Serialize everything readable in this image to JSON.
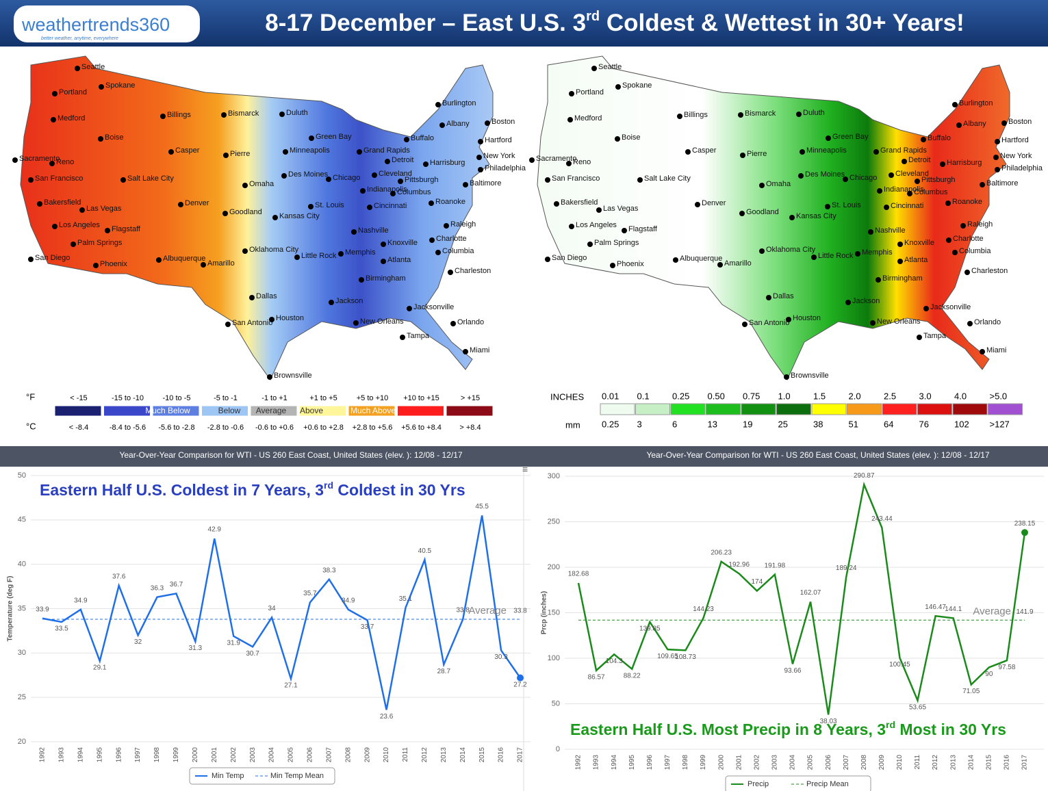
{
  "header": {
    "logo": "weathertrends360",
    "tagline": "better weather, anytime, everywhere",
    "title_parts": [
      "8-17 December – East U.S. 3",
      "rd",
      " Coldest & Wettest in 30+ Years!"
    ]
  },
  "cities": [
    "Seattle",
    "Spokane",
    "Portland",
    "Medford",
    "Boise",
    "Billings",
    "Casper",
    "Bismarck",
    "Duluth",
    "Minneapolis",
    "Pierre",
    "Green Bay",
    "Grand Rapids",
    "Detroit",
    "Burlington",
    "Albany",
    "Boston",
    "Hartford",
    "Buffalo",
    "New York",
    "Philadelphia",
    "Harrisburg",
    "Baltimore",
    "Pittsburgh",
    "Cleveland",
    "Chicago",
    "Des Moines",
    "Omaha",
    "Salt Lake City",
    "Reno",
    "Sacramento",
    "San Francisco",
    "Bakersfield",
    "Las Vegas",
    "Denver",
    "Goodland",
    "Kansas City",
    "St. Louis",
    "Indianapolis",
    "Columbus",
    "Cincinnati",
    "Roanoke",
    "Raleigh",
    "Charlotte",
    "Nashville",
    "Knoxville",
    "Los Angeles",
    "Palm Springs",
    "Flagstaff",
    "San Diego",
    "Phoenix",
    "Albuquerque",
    "Amarillo",
    "Oklahoma City",
    "Little Rock",
    "Memphis",
    "Atlanta",
    "Columbia",
    "Charleston",
    "Birmingham",
    "Dallas",
    "Jackson",
    "Jacksonville",
    "San Antonio",
    "Houston",
    "New Orleans",
    "Orlando",
    "Tampa",
    "Miami",
    "Brownsville"
  ],
  "temperature_map": {
    "legend": {
      "unit_f": "°F",
      "unit_c": "°C",
      "f_ranges": [
        "< -15",
        "-15 to -10",
        "-10 to -5",
        "-5 to -1",
        "-1 to +1",
        "+1 to +5",
        "+5 to +10",
        "+10 to +15",
        "> +15"
      ],
      "c_ranges": [
        "< -8.4",
        "-8.4 to -5.6",
        "-5.6 to -2.8",
        "-2.8 to -0.6",
        "-0.6 to +0.6",
        "+0.6 to +2.8",
        "+2.8 to +5.6",
        "+5.6 to +8.4",
        "> +8.4"
      ],
      "colors": [
        "#1b2070",
        "#3b47c9",
        "#5d7fe2",
        "#9ec6f5",
        "#b4b4b4",
        "#fff59b",
        "#f4a020",
        "#ff1c1c",
        "#8c0b16"
      ],
      "classes": [
        "Much Below",
        "Below",
        "Average",
        "Above",
        "Much Above"
      ]
    }
  },
  "precip_map": {
    "legend": {
      "unit_in": "INCHES",
      "unit_mm": "mm",
      "inches": [
        "0.01",
        "0.1",
        "0.25",
        "0.50",
        "0.75",
        "1.0",
        "1.5",
        "2.0",
        "2.5",
        "3.0",
        "4.0",
        ">5.0"
      ],
      "mm": [
        "0.25",
        "3",
        "6",
        "13",
        "19",
        "25",
        "38",
        "51",
        "64",
        "76",
        "102",
        ">127"
      ],
      "colors": [
        "#eefbee",
        "#c6efc6",
        "#22e022",
        "#1cbd1c",
        "#129012",
        "#0c6e0c",
        "#ffff00",
        "#f79a1a",
        "#ff2020",
        "#dd1010",
        "#a00a0a",
        "#a050d0"
      ]
    }
  },
  "chart_data": [
    {
      "type": "line",
      "title": "Year-Over-Year Comparison for WTI - US 260 East Coast, United States (elev. ): 12/08 - 12/17",
      "annotation_parts": [
        "Eastern Half U.S. Coldest in 7 Years, 3",
        "rd",
        " Coldest in 30 Yrs"
      ],
      "annotation_color": "#2a3fbf",
      "y_label": "Temperature (deg F)",
      "categories": [
        "1992",
        "1993",
        "1994",
        "1995",
        "1996",
        "1997",
        "1998",
        "1999",
        "2000",
        "2001",
        "2002",
        "2003",
        "2004",
        "2005",
        "2006",
        "2007",
        "2008",
        "2009",
        "2010",
        "2011",
        "2012",
        "2013",
        "2014",
        "2015",
        "2016",
        "2017"
      ],
      "series": [
        {
          "name": "Min Temp",
          "color": "#1f6fe8",
          "values": [
            33.9,
            33.5,
            34.9,
            29.1,
            37.6,
            32,
            36.3,
            36.7,
            31.3,
            42.9,
            31.9,
            30.7,
            34,
            27.1,
            35.7,
            38.3,
            34.9,
            33.7,
            23.6,
            35.1,
            40.5,
            28.7,
            33.8,
            45.5,
            30.3,
            27.2
          ]
        }
      ],
      "mean": {
        "name": "Min Temp Mean",
        "value": 33.8,
        "label": "Average"
      },
      "ylim": [
        20,
        50
      ],
      "yticks": [
        20,
        25,
        30,
        35,
        40,
        45,
        50
      ]
    },
    {
      "type": "line",
      "title": "Year-Over-Year Comparison for WTI - US 260 East Coast, United States (elev. ): 12/08 - 12/17",
      "annotation_parts": [
        "Eastern Half U.S. Most Precip in 8 Years, 3",
        "rd",
        " Most in 30 Yrs"
      ],
      "annotation_color": "#1a9a1a",
      "y_label": "Prcp (inches)",
      "categories": [
        "1992",
        "1993",
        "1994",
        "1995",
        "1996",
        "1997",
        "1998",
        "1999",
        "2000",
        "2001",
        "2002",
        "2003",
        "2004",
        "2005",
        "2006",
        "2007",
        "2008",
        "2009",
        "2010",
        "2011",
        "2012",
        "2013",
        "2014",
        "2015",
        "2016",
        "2017"
      ],
      "series": [
        {
          "name": "Precip",
          "color": "#1a8a1a",
          "values": [
            182.68,
            86.57,
            104.3,
            88.22,
            139.85,
            109.65,
            108.73,
            144.23,
            206.23,
            192.96,
            174,
            191.98,
            93.66,
            162.07,
            38.03,
            189.24,
            290.87,
            243.44,
            100.45,
            53.65,
            146.47,
            144.1,
            71.05,
            90,
            97.58,
            238.15
          ]
        }
      ],
      "mean": {
        "name": "Precip Mean",
        "value": 141.9,
        "label": "Average"
      },
      "ylim": [
        0,
        300
      ],
      "yticks": [
        0,
        50,
        100,
        150,
        200,
        250,
        300
      ]
    }
  ]
}
